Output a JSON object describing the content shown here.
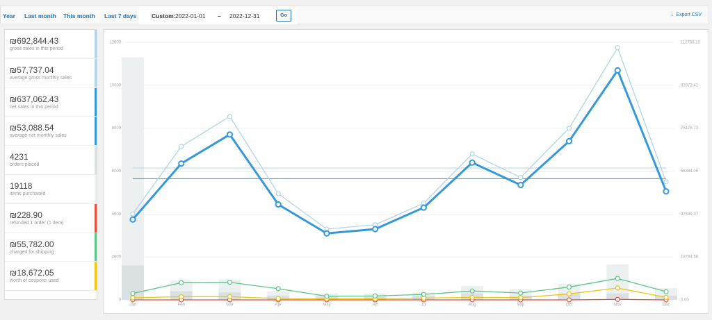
{
  "range_tabs": [
    "Year",
    "Last month",
    "This month",
    "Last 7 days"
  ],
  "custom": {
    "label": "Custom:",
    "start": "2022-01-01",
    "separator": "–",
    "end": "2022-12-31",
    "button": "Go"
  },
  "export": "Export CSV",
  "summary": [
    {
      "value": 692844.43,
      "label": "₪692,844.43",
      "description": "gross sales in this period",
      "color": "#b1d4ea"
    },
    {
      "value": 57737.04,
      "label": "₪57,737.04",
      "description": "average gross monthly sales",
      "color": "#b1d4ea"
    },
    {
      "value": 637062.43,
      "label": "₪637,062.43",
      "description": "net sales in this period",
      "color": "#3498db"
    },
    {
      "value": 53088.54,
      "label": "₪53,088.54",
      "description": "average net monthly sales",
      "color": "#3498db"
    },
    {
      "value": 4231,
      "description": "orders placed",
      "color": "#dbe1e3"
    },
    {
      "value": 19118,
      "description": "items purchased",
      "color": "#ecf0f1"
    },
    {
      "value": 228.9,
      "label": "₪228.90",
      "description": "refunded 1 order (1 item)",
      "color": "#e74c3c"
    },
    {
      "value": 55782,
      "label": "₪55,782.00",
      "description": "charged for shipping",
      "color": "#5cc488"
    },
    {
      "value": 18672.05,
      "label": "₪18,672.05",
      "description": "worth of coupons used",
      "color": "#f1c40f"
    }
  ],
  "chart_data": {
    "type": "line",
    "categories": [
      "Jan",
      "Feb",
      "Mar",
      "Apr",
      "May",
      "Jun",
      "Jul",
      "Aug",
      "Sep",
      "Oct",
      "Nov",
      "Dec"
    ],
    "ylim": [
      0,
      12000
    ],
    "yticks": [
      0,
      2000,
      4000,
      6000,
      8000,
      10000,
      12000
    ],
    "y2lim": [
      0,
      112768.1
    ],
    "y2ticks": [
      {
        "value": 0,
        "label": "0.00"
      },
      {
        "value": 18794.68,
        "label": "18794.68"
      },
      {
        "value": 37589.37,
        "label": "37589.37"
      },
      {
        "value": 56384.05,
        "label": "56384.05"
      },
      {
        "value": 75178.73,
        "label": "75178.73"
      },
      {
        "value": 93973.42,
        "label": "93973.42"
      },
      {
        "value": 112768.1,
        "label": "112768.10"
      }
    ],
    "grid": true,
    "series": [
      {
        "kind": "bar",
        "axis": "y",
        "color": "#ecf0f1",
        "values": [
          11300,
          900,
          950,
          400,
          300,
          300,
          350,
          650,
          500,
          750,
          1650,
          550
        ]
      },
      {
        "kind": "bar",
        "axis": "y",
        "color": "#dbe1e3",
        "values": [
          1600,
          400,
          350,
          200,
          150,
          150,
          180,
          300,
          200,
          300,
          300,
          200
        ]
      },
      {
        "kind": "line",
        "axis": "y2",
        "color": "#b1d4ea",
        "values": [
          37600,
          67200,
          80300,
          46500,
          31000,
          32900,
          42300,
          63900,
          53600,
          75200,
          110400,
          51700
        ]
      },
      {
        "kind": "line",
        "axis": "y2",
        "color": "#3498db",
        "values": [
          35200,
          59700,
          72400,
          41800,
          29100,
          31000,
          40400,
          60100,
          50300,
          69500,
          100500,
          47500
        ]
      },
      {
        "kind": "line",
        "axis": "y2",
        "color": "#5cc488",
        "values": [
          2800,
          7500,
          7700,
          4900,
          1600,
          1700,
          2400,
          3900,
          3000,
          5600,
          9400,
          3600
        ]
      },
      {
        "kind": "line",
        "axis": "y2",
        "color": "#f1c40f",
        "values": [
          900,
          1400,
          1400,
          600,
          500,
          500,
          800,
          1100,
          1000,
          2600,
          5200,
          1100
        ]
      },
      {
        "kind": "line",
        "axis": "y2",
        "color": "#e74c3c",
        "values": [
          0,
          0,
          0,
          0,
          0,
          0,
          0,
          0,
          0,
          0,
          229,
          0
        ]
      }
    ]
  }
}
